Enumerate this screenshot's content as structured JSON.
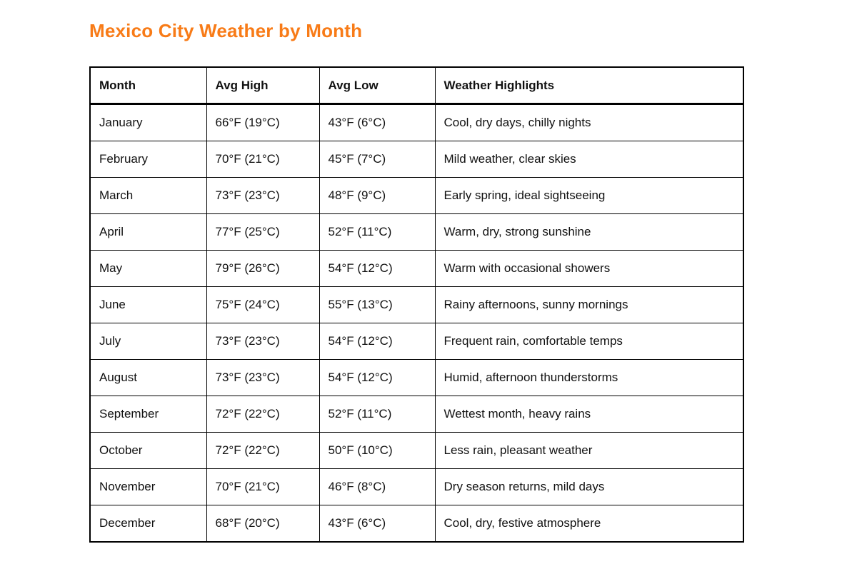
{
  "page": {
    "title": "Mexico City Weather by Month",
    "title_color": "#F87B17",
    "background_color": "#FFFFFF",
    "table_border_color": "#000000",
    "text_color": "#111111"
  },
  "table": {
    "columns": [
      "Month",
      "Avg High",
      "Avg Low",
      "Weather Highlights"
    ],
    "rows": [
      {
        "month": "January",
        "avg_high": "66°F (19°C)",
        "avg_low": "43°F (6°C)",
        "highlights": "Cool, dry days, chilly nights"
      },
      {
        "month": "February",
        "avg_high": "70°F (21°C)",
        "avg_low": "45°F (7°C)",
        "highlights": "Mild weather, clear skies"
      },
      {
        "month": "March",
        "avg_high": "73°F (23°C)",
        "avg_low": "48°F (9°C)",
        "highlights": "Early spring, ideal sightseeing"
      },
      {
        "month": "April",
        "avg_high": "77°F (25°C)",
        "avg_low": "52°F (11°C)",
        "highlights": "Warm, dry, strong sunshine"
      },
      {
        "month": "May",
        "avg_high": "79°F (26°C)",
        "avg_low": "54°F (12°C)",
        "highlights": "Warm with occasional showers"
      },
      {
        "month": "June",
        "avg_high": "75°F (24°C)",
        "avg_low": "55°F (13°C)",
        "highlights": "Rainy afternoons, sunny mornings"
      },
      {
        "month": "July",
        "avg_high": "73°F (23°C)",
        "avg_low": "54°F (12°C)",
        "highlights": "Frequent rain, comfortable temps"
      },
      {
        "month": "August",
        "avg_high": "73°F (23°C)",
        "avg_low": "54°F (12°C)",
        "highlights": "Humid, afternoon thunderstorms"
      },
      {
        "month": "September",
        "avg_high": "72°F (22°C)",
        "avg_low": "52°F (11°C)",
        "highlights": "Wettest month, heavy rains"
      },
      {
        "month": "October",
        "avg_high": "72°F (22°C)",
        "avg_low": "50°F (10°C)",
        "highlights": "Less rain, pleasant weather"
      },
      {
        "month": "November",
        "avg_high": "70°F (21°C)",
        "avg_low": "46°F (8°C)",
        "highlights": "Dry season returns, mild days"
      },
      {
        "month": "December",
        "avg_high": "68°F (20°C)",
        "avg_low": "43°F (6°C)",
        "highlights": "Cool, dry, festive atmosphere"
      }
    ]
  }
}
